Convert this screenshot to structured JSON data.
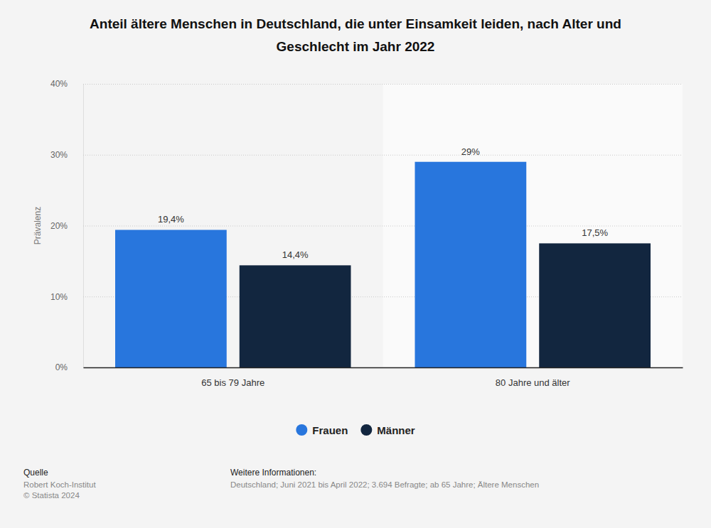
{
  "chart_data": {
    "type": "bar",
    "title": "Anteil ältere Menschen in Deutschland, die unter Einsamkeit leiden, nach Alter und Geschlecht im Jahr 2022",
    "y_label": "Prävalenz",
    "categories": [
      "65 bis 79 Jahre",
      "80 Jahre und älter"
    ],
    "series": [
      {
        "name": "Frauen",
        "color": "#2876dd",
        "values": [
          19.4,
          29
        ],
        "value_labels": [
          "19,4%",
          "29%"
        ]
      },
      {
        "name": "Männer",
        "color": "#12263f",
        "values": [
          14.4,
          17.5
        ],
        "value_labels": [
          "14,4%",
          "17,5%"
        ]
      }
    ],
    "ylim": [
      0,
      40
    ],
    "yticks": [
      {
        "value": 0,
        "label": "0%"
      },
      {
        "value": 10,
        "label": "10%"
      },
      {
        "value": 20,
        "label": "20%"
      },
      {
        "value": 30,
        "label": "30%"
      },
      {
        "value": 40,
        "label": "40%"
      }
    ],
    "grid": true,
    "legend": "bottom",
    "data_labels": true,
    "source": {
      "title": "Quelle",
      "lines": [
        "Robert Koch-Institut",
        "© Statista 2024"
      ]
    },
    "notes": {
      "title": "Weitere Informationen:",
      "text": "Deutschland; Juni 2021 bis April 2022; 3.694 Befragte; ab 65 Jahre; Ältere Menschen"
    }
  }
}
